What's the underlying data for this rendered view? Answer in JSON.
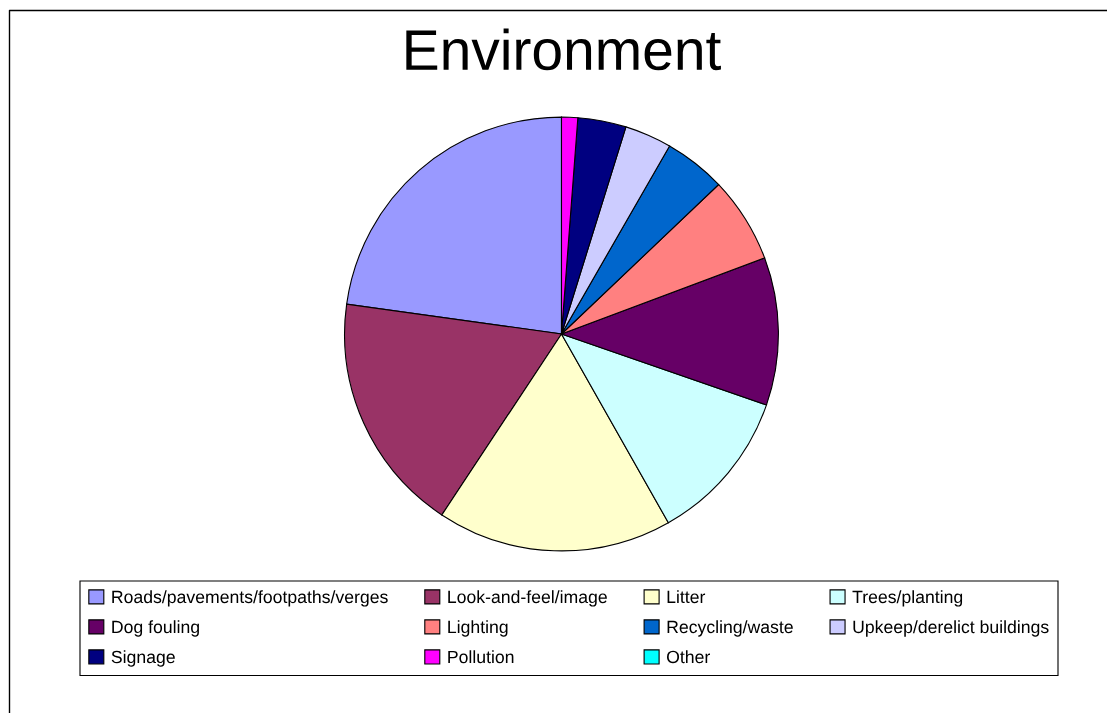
{
  "chart_data": {
    "type": "pie",
    "title": "Environment",
    "categories": [
      "Roads/pavements/footpaths/verges",
      "Look-and-feel/image",
      "Litter",
      "Trees/planting",
      "Dog fouling",
      "Lighting",
      "Recycling/waste",
      "Upkeep/derelict buildings",
      "Signage",
      "Pollution",
      "Other"
    ],
    "values": [
      22.8,
      17.9,
      17.5,
      11.5,
      11.0,
      6.4,
      4.6,
      3.5,
      3.6,
      1.2,
      0
    ],
    "colors": [
      "#9999ff",
      "#993366",
      "#ffffcc",
      "#ccffff",
      "#660066",
      "#ff8080",
      "#0066cc",
      "#ccccff",
      "#000080",
      "#ff00ff",
      "#00ffff"
    ],
    "legend": "bottom"
  }
}
